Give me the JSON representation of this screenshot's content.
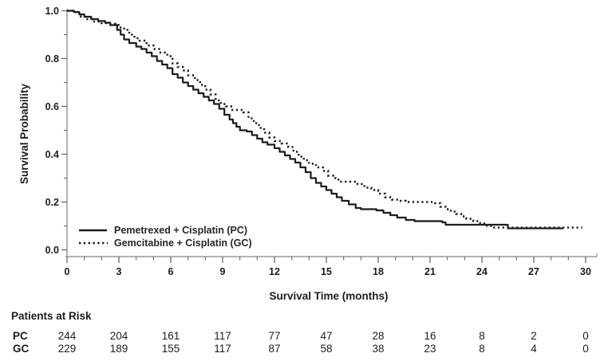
{
  "chart_data": {
    "type": "line",
    "subtype": "kaplan-meier-step",
    "xlabel": "Survival Time (months)",
    "ylabel": "Survival Probability",
    "xlim": [
      0,
      30
    ],
    "ylim": [
      0.0,
      1.0
    ],
    "x_ticks": [
      0,
      3,
      6,
      9,
      12,
      15,
      18,
      21,
      24,
      27,
      30
    ],
    "x_minor_step": 1,
    "y_ticks": [
      1.0,
      0.8,
      0.6,
      0.4,
      0.2,
      0.0
    ],
    "y_minor_step": 0.1,
    "grid": "off",
    "legend_position": "lower-left-inside",
    "colors": {
      "curve": "#1c1c1c",
      "axis_line": "#9a9a9a",
      "tick": "#6b6b6b",
      "text": "#1d1d1d"
    },
    "series": [
      {
        "name": "Pemetrexed + Cisplatin (PC)",
        "style": "solid",
        "points": [
          [
            0,
            1.0
          ],
          [
            0.4,
            0.995
          ],
          [
            0.7,
            0.985
          ],
          [
            1.0,
            0.975
          ],
          [
            1.4,
            0.965
          ],
          [
            1.8,
            0.957
          ],
          [
            2.2,
            0.95
          ],
          [
            2.5,
            0.94
          ],
          [
            2.9,
            0.92
          ],
          [
            3.1,
            0.9
          ],
          [
            3.3,
            0.88
          ],
          [
            3.6,
            0.865
          ],
          [
            4.0,
            0.85
          ],
          [
            4.3,
            0.84
          ],
          [
            4.6,
            0.825
          ],
          [
            4.9,
            0.81
          ],
          [
            5.2,
            0.79
          ],
          [
            5.5,
            0.775
          ],
          [
            5.8,
            0.76
          ],
          [
            6.1,
            0.735
          ],
          [
            6.4,
            0.72
          ],
          [
            6.7,
            0.7
          ],
          [
            7.0,
            0.685
          ],
          [
            7.3,
            0.67
          ],
          [
            7.6,
            0.655
          ],
          [
            7.9,
            0.64
          ],
          [
            8.2,
            0.625
          ],
          [
            8.5,
            0.61
          ],
          [
            8.8,
            0.59
          ],
          [
            9.1,
            0.565
          ],
          [
            9.4,
            0.545
          ],
          [
            9.6,
            0.53
          ],
          [
            9.8,
            0.515
          ],
          [
            10.0,
            0.5
          ],
          [
            10.4,
            0.495
          ],
          [
            10.7,
            0.48
          ],
          [
            11.0,
            0.465
          ],
          [
            11.3,
            0.45
          ],
          [
            11.6,
            0.44
          ],
          [
            12.0,
            0.425
          ],
          [
            12.3,
            0.41
          ],
          [
            12.6,
            0.395
          ],
          [
            12.9,
            0.38
          ],
          [
            13.2,
            0.365
          ],
          [
            13.5,
            0.345
          ],
          [
            13.8,
            0.325
          ],
          [
            14.1,
            0.3
          ],
          [
            14.4,
            0.28
          ],
          [
            14.7,
            0.265
          ],
          [
            15.0,
            0.25
          ],
          [
            15.3,
            0.235
          ],
          [
            15.6,
            0.22
          ],
          [
            15.9,
            0.205
          ],
          [
            16.3,
            0.19
          ],
          [
            16.7,
            0.175
          ],
          [
            17.0,
            0.17
          ],
          [
            17.9,
            0.165
          ],
          [
            18.3,
            0.155
          ],
          [
            18.7,
            0.145
          ],
          [
            19.1,
            0.135
          ],
          [
            19.6,
            0.125
          ],
          [
            20.1,
            0.12
          ],
          [
            21.7,
            0.115
          ],
          [
            21.9,
            0.105
          ],
          [
            25.5,
            0.09
          ],
          [
            28.7,
            0.09
          ]
        ]
      },
      {
        "name": "Gemcitabine + Cisplatin (GC)",
        "style": "dotted",
        "points": [
          [
            0,
            1.0
          ],
          [
            0.5,
            0.99
          ],
          [
            0.8,
            0.975
          ],
          [
            1.1,
            0.965
          ],
          [
            1.5,
            0.955
          ],
          [
            2.0,
            0.948
          ],
          [
            2.4,
            0.945
          ],
          [
            2.8,
            0.94
          ],
          [
            3.0,
            0.93
          ],
          [
            3.3,
            0.92
          ],
          [
            3.6,
            0.9
          ],
          [
            3.9,
            0.885
          ],
          [
            4.2,
            0.875
          ],
          [
            4.6,
            0.855
          ],
          [
            5.0,
            0.84
          ],
          [
            5.4,
            0.825
          ],
          [
            5.8,
            0.81
          ],
          [
            6.1,
            0.78
          ],
          [
            6.4,
            0.765
          ],
          [
            6.7,
            0.75
          ],
          [
            7.0,
            0.73
          ],
          [
            7.4,
            0.71
          ],
          [
            7.7,
            0.69
          ],
          [
            8.0,
            0.67
          ],
          [
            8.3,
            0.65
          ],
          [
            8.6,
            0.625
          ],
          [
            8.9,
            0.61
          ],
          [
            9.2,
            0.6
          ],
          [
            9.5,
            0.585
          ],
          [
            10.2,
            0.575
          ],
          [
            10.5,
            0.55
          ],
          [
            10.8,
            0.53
          ],
          [
            11.1,
            0.51
          ],
          [
            11.4,
            0.49
          ],
          [
            11.7,
            0.47
          ],
          [
            12.0,
            0.455
          ],
          [
            12.4,
            0.445
          ],
          [
            12.8,
            0.43
          ],
          [
            13.1,
            0.41
          ],
          [
            13.4,
            0.39
          ],
          [
            13.7,
            0.375
          ],
          [
            14.0,
            0.36
          ],
          [
            14.4,
            0.345
          ],
          [
            14.8,
            0.33
          ],
          [
            15.1,
            0.31
          ],
          [
            15.4,
            0.3
          ],
          [
            15.7,
            0.285
          ],
          [
            16.8,
            0.275
          ],
          [
            17.2,
            0.26
          ],
          [
            17.6,
            0.25
          ],
          [
            18.0,
            0.235
          ],
          [
            18.4,
            0.22
          ],
          [
            18.8,
            0.21
          ],
          [
            19.3,
            0.205
          ],
          [
            19.6,
            0.2
          ],
          [
            21.3,
            0.195
          ],
          [
            21.6,
            0.18
          ],
          [
            21.9,
            0.17
          ],
          [
            22.2,
            0.16
          ],
          [
            22.5,
            0.15
          ],
          [
            22.8,
            0.14
          ],
          [
            23.1,
            0.13
          ],
          [
            23.5,
            0.12
          ],
          [
            23.9,
            0.11
          ],
          [
            24.3,
            0.1
          ],
          [
            24.6,
            0.093
          ],
          [
            29.8,
            0.093
          ]
        ]
      }
    ],
    "risk_table": {
      "title": "Patients at Risk",
      "times": [
        0,
        3,
        6,
        9,
        12,
        15,
        18,
        21,
        24,
        27,
        30
      ],
      "rows": [
        {
          "label": "PC",
          "counts": [
            244,
            204,
            161,
            117,
            77,
            47,
            28,
            16,
            8,
            2,
            0
          ]
        },
        {
          "label": "GC",
          "counts": [
            229,
            189,
            155,
            117,
            87,
            58,
            38,
            23,
            8,
            4,
            0
          ]
        }
      ]
    }
  }
}
